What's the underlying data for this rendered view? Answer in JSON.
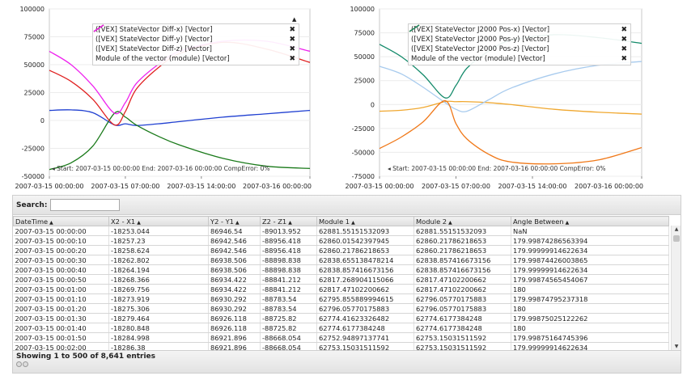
{
  "chart_data": [
    {
      "type": "line",
      "title": "",
      "xlabel": "",
      "ylabel": "",
      "x_tick_labels": [
        "2007-03-15 00:00:00",
        "2007-03-15 07:00:00",
        "2007-03-15 14:00:00",
        "2007-03-16 00:00:00"
      ],
      "x_tick_hours": [
        0,
        7,
        14,
        24
      ],
      "ylim": [
        -50000,
        100000
      ],
      "y_ticks": [
        "100000",
        "75000",
        "50000",
        "25000",
        "0",
        "-25000",
        "-50000"
      ],
      "legend_position": "top-right",
      "x_hours": [
        0,
        2,
        4,
        6,
        7,
        8,
        10,
        12,
        16,
        20,
        24
      ],
      "series": [
        {
          "name": "([VEX] StateVector Diff-x) [Vector]",
          "color": "#1f3fd1",
          "values": [
            9000,
            9500,
            7000,
            -4000,
            -3000,
            -4500,
            -3000,
            -1000,
            3000,
            6000,
            9000
          ]
        },
        {
          "name": "([VEX] StateVector Diff-y) [Vector]",
          "color": "#1a7a1a",
          "values": [
            -44000,
            -38000,
            -23000,
            6500,
            3000,
            -4000,
            -14000,
            -22000,
            -34000,
            -41000,
            -43000
          ]
        },
        {
          "name": "([VEX] StateVector Diff-z) [Vector]",
          "color": "#e02020",
          "values": [
            45000,
            35000,
            19000,
            -4000,
            8000,
            28000,
            47000,
            60000,
            70000,
            64000,
            52000
          ]
        },
        {
          "name": "Module of the vector (module) [Vector]",
          "color": "#ee22ee",
          "values": [
            62000,
            50000,
            31000,
            6500,
            16000,
            33000,
            50000,
            62000,
            71000,
            71000,
            62000
          ]
        }
      ]
    },
    {
      "type": "line",
      "title": "",
      "xlabel": "",
      "ylabel": "",
      "x_tick_labels": [
        "2007-03-15 00:00:00",
        "2007-03-15 07:00:00",
        "2007-03-15 14:00:00",
        "2007-03-16 00:00:00"
      ],
      "x_tick_hours": [
        0,
        7,
        14,
        24
      ],
      "ylim": [
        -75000,
        100000
      ],
      "y_ticks": [
        "100000",
        "75000",
        "50000",
        "25000",
        "0",
        "-25000",
        "-50000",
        "-75000"
      ],
      "legend_position": "top-right",
      "x_hours": [
        0,
        2,
        4,
        6,
        7,
        8,
        10,
        12,
        16,
        20,
        24
      ],
      "series": [
        {
          "name": "([VEX] StateVector J2000 Pos-x) [Vector]",
          "color": "#f0a830",
          "values": [
            -7000,
            -6000,
            -3000,
            3000,
            3000,
            3000,
            2000,
            0,
            -5000,
            -8000,
            -10000
          ]
        },
        {
          "name": "([VEX] StateVector J2000 Pos-y) [Vector]",
          "color": "#a8cbee",
          "values": [
            40000,
            32000,
            18000,
            2000,
            -5000,
            -7000,
            5000,
            17000,
            32000,
            41000,
            45000
          ]
        },
        {
          "name": "([VEX] StateVector J2000 Pos-z) [Vector]",
          "color": "#f07818",
          "values": [
            -46000,
            -34000,
            -18000,
            4000,
            -20000,
            -36000,
            -52000,
            -60000,
            -62000,
            -58000,
            -45000
          ]
        },
        {
          "name": "Module of the vector (module) [Vector]",
          "color": "#138a6a",
          "values": [
            63000,
            50000,
            31000,
            7000,
            20000,
            38000,
            56000,
            67000,
            73000,
            70000,
            64000
          ]
        }
      ]
    }
  ],
  "charts": {
    "left": {
      "footer": "Start: 2007-03-15 00:00:00 End: 2007-03-16 00:00:00 CompError: 0%",
      "x_tick_labels": [
        "2007-03-15 00:00:00",
        "2007-03-15 07:00:00",
        "2007-03-15 14:00:00",
        "2007-03-16 00:00:00"
      ]
    },
    "right": {
      "footer": "Start: 2007-03-15 00:00:00 End: 2007-03-16 00:00:00 CompError: 0%",
      "x_tick_labels": [
        "2007-03-15 00:00:00",
        "2007-03-15 07:00:00",
        "2007-03-15 14:00:00",
        "2007-03-16 00:00:00"
      ]
    }
  },
  "grid": {
    "search_label": "Search:",
    "search_value": "",
    "columns": [
      "DateTime",
      "X2 - X1",
      "Y2 - Y1",
      "Z2 - Z1",
      "Module 1",
      "Module 2",
      "Angle Between"
    ],
    "rows": [
      [
        "2007-03-15 00:00:00",
        "-18253.044",
        "86946.54",
        "-89013.952",
        "62881.55151532093",
        "62881.55151532093",
        "NaN"
      ],
      [
        "2007-03-15 00:00:10",
        "-18257.23",
        "86942.546",
        "-88956.418",
        "62860.01542397945",
        "62860.21786218653",
        "179.99874286563394"
      ],
      [
        "2007-03-15 00:00:20",
        "-18258.624",
        "86942.546",
        "-88956.418",
        "62860.21786218653",
        "62860.21786218653",
        "179.99999914622634"
      ],
      [
        "2007-03-15 00:00:30",
        "-18262.802",
        "86938.506",
        "-88898.838",
        "62838.655138478214",
        "62838.857416673156",
        "179.99874426003865"
      ],
      [
        "2007-03-15 00:00:40",
        "-18264.194",
        "86938.506",
        "-88898.838",
        "62838.857416673156",
        "62838.857416673156",
        "179.99999914622634"
      ],
      [
        "2007-03-15 00:00:50",
        "-18268.366",
        "86934.422",
        "-88841.212",
        "62817.268904115066",
        "62817.47102200662",
        "179.99874565454067"
      ],
      [
        "2007-03-15 00:01:00",
        "-18269.756",
        "86934.422",
        "-88841.212",
        "62817.47102200662",
        "62817.47102200662",
        "180"
      ],
      [
        "2007-03-15 00:01:10",
        "-18273.919",
        "86930.292",
        "-88783.54",
        "62795.855889994615",
        "62796.05770175883",
        "179.99874795237318"
      ],
      [
        "2007-03-15 00:01:20",
        "-18275.306",
        "86930.292",
        "-88783.54",
        "62796.05770175883",
        "62796.05770175883",
        "180"
      ],
      [
        "2007-03-15 00:01:30",
        "-18279.464",
        "86926.118",
        "-88725.82",
        "62774.41623326482",
        "62774.6177384248",
        "179.99875025122262"
      ],
      [
        "2007-03-15 00:01:40",
        "-18280.848",
        "86926.118",
        "-88725.82",
        "62774.6177384248",
        "62774.6177384248",
        "180"
      ],
      [
        "2007-03-15 00:01:50",
        "-18284.998",
        "86921.896",
        "-88668.054",
        "62752.94897137741",
        "62753.15031511592",
        "179.99875164745396"
      ],
      [
        "2007-03-15 00:02:00",
        "-18286.38",
        "86921.896",
        "-88668.054",
        "62753.15031511592",
        "62753.15031511592",
        "179.99999914622634"
      ]
    ],
    "info": "Showing 1 to 500 of 8,641 entries"
  }
}
